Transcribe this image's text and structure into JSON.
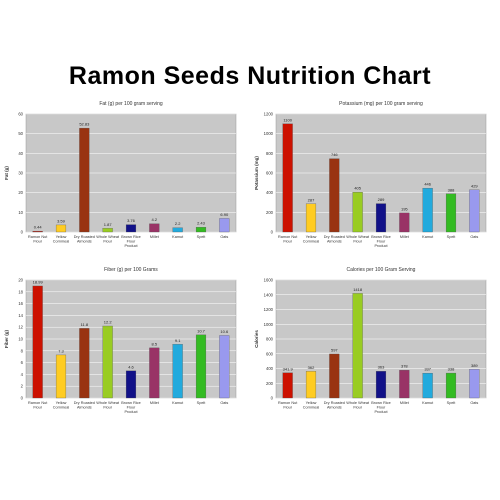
{
  "page": {
    "title": "Ramon Seeds Nutrition Chart"
  },
  "chart_data": [
    {
      "type": "bar",
      "title": "Fat (g) per 100 gram serving",
      "ylabel": "Fat (g)",
      "ylim": [
        0,
        60
      ],
      "yticks": [
        "0",
        "10",
        "20",
        "30",
        "40",
        "50",
        "60"
      ],
      "categories": [
        "Ramon Nut Flour",
        "Yellow Cornmeal",
        "Dry Roasted Almonds",
        "Whole Wheat Flour",
        "Brown Rice Flour Product",
        "Millet",
        "Kamut",
        "Spelt",
        "Oats"
      ],
      "values": [
        0.44,
        3.59,
        52.83,
        1.87,
        3.76,
        4.2,
        2.2,
        2.43,
        6.9
      ],
      "value_labels": [
        "0.44",
        "3.59",
        "52.83",
        "1.87",
        "3.76",
        "4.2",
        "2.2",
        "2.43",
        "6.90"
      ],
      "colors": [
        "#cc1100",
        "#ffcc22",
        "#993311",
        "#99cc22",
        "#111188",
        "#993366",
        "#22aadd",
        "#33bb22",
        "#9999ee"
      ]
    },
    {
      "type": "bar",
      "title": "Potassium (mg) per 100 gram serving",
      "ylabel": "Potassium (mg)",
      "ylim": [
        0,
        1200
      ],
      "yticks": [
        "0",
        "200",
        "400",
        "600",
        "800",
        "1000",
        "1200"
      ],
      "categories": [
        "Ramon Nut Flour",
        "Yellow Cornmeal",
        "Dry Roasted Almonds",
        "Whole Wheat Flour",
        "Brown Rice Flour Product",
        "Millet",
        "Kamut",
        "Spelt",
        "Oats"
      ],
      "values": [
        1100,
        287,
        746,
        405,
        289,
        195,
        446,
        388,
        429
      ],
      "value_labels": [
        "1100",
        "287",
        "746",
        "405",
        "289",
        "195",
        "446",
        "388",
        "429"
      ],
      "colors": [
        "#cc1100",
        "#ffcc22",
        "#993311",
        "#99cc22",
        "#111188",
        "#993366",
        "#22aadd",
        "#33bb22",
        "#9999ee"
      ]
    },
    {
      "type": "bar",
      "title": "Fiber (g) per 100 Grams",
      "ylabel": "Fiber (g)",
      "ylim": [
        0,
        20
      ],
      "yticks": [
        "0",
        "2",
        "4",
        "6",
        "8",
        "10",
        "12",
        "14",
        "16",
        "18",
        "20"
      ],
      "categories": [
        "Ramon Nut Flour",
        "Yellow Cornmeal",
        "Dry Roasted Almonds",
        "Whole Wheat Flour",
        "Brown Rice Flour Product",
        "Millet",
        "Kamut",
        "Spelt",
        "Oats"
      ],
      "values": [
        18.99,
        7.3,
        11.8,
        12.2,
        4.6,
        8.5,
        9.1,
        10.7,
        10.6
      ],
      "value_labels": [
        "18.99",
        "7.3",
        "11.8",
        "12.2",
        "4.6",
        "8.5",
        "9.1",
        "10.7",
        "10.6"
      ],
      "colors": [
        "#cc1100",
        "#ffcc22",
        "#993311",
        "#99cc22",
        "#111188",
        "#993366",
        "#22aadd",
        "#33bb22",
        "#9999ee"
      ]
    },
    {
      "type": "bar",
      "title": "Calories per 100 Gram Serving",
      "ylabel": "Calories",
      "ylim": [
        0,
        1600
      ],
      "yticks": [
        "0",
        "200",
        "400",
        "600",
        "800",
        "1000",
        "1200",
        "1400",
        "1600"
      ],
      "categories": [
        "Ramon Nut Flour",
        "Yellow Cornmeal",
        "Dry Roasted Almonds",
        "Whole Wheat Flour",
        "Brown Rice Flour Product",
        "Millet",
        "Kamut",
        "Spelt",
        "Oats"
      ],
      "values": [
        341.9,
        362,
        597,
        1418,
        363,
        378,
        337,
        338,
        389
      ],
      "value_labels": [
        "341.9",
        "362",
        "597",
        "1418",
        "363",
        "378",
        "337",
        "338",
        "389"
      ],
      "colors": [
        "#cc1100",
        "#ffcc22",
        "#993311",
        "#99cc22",
        "#111188",
        "#993366",
        "#22aadd",
        "#33bb22",
        "#9999ee"
      ]
    }
  ]
}
